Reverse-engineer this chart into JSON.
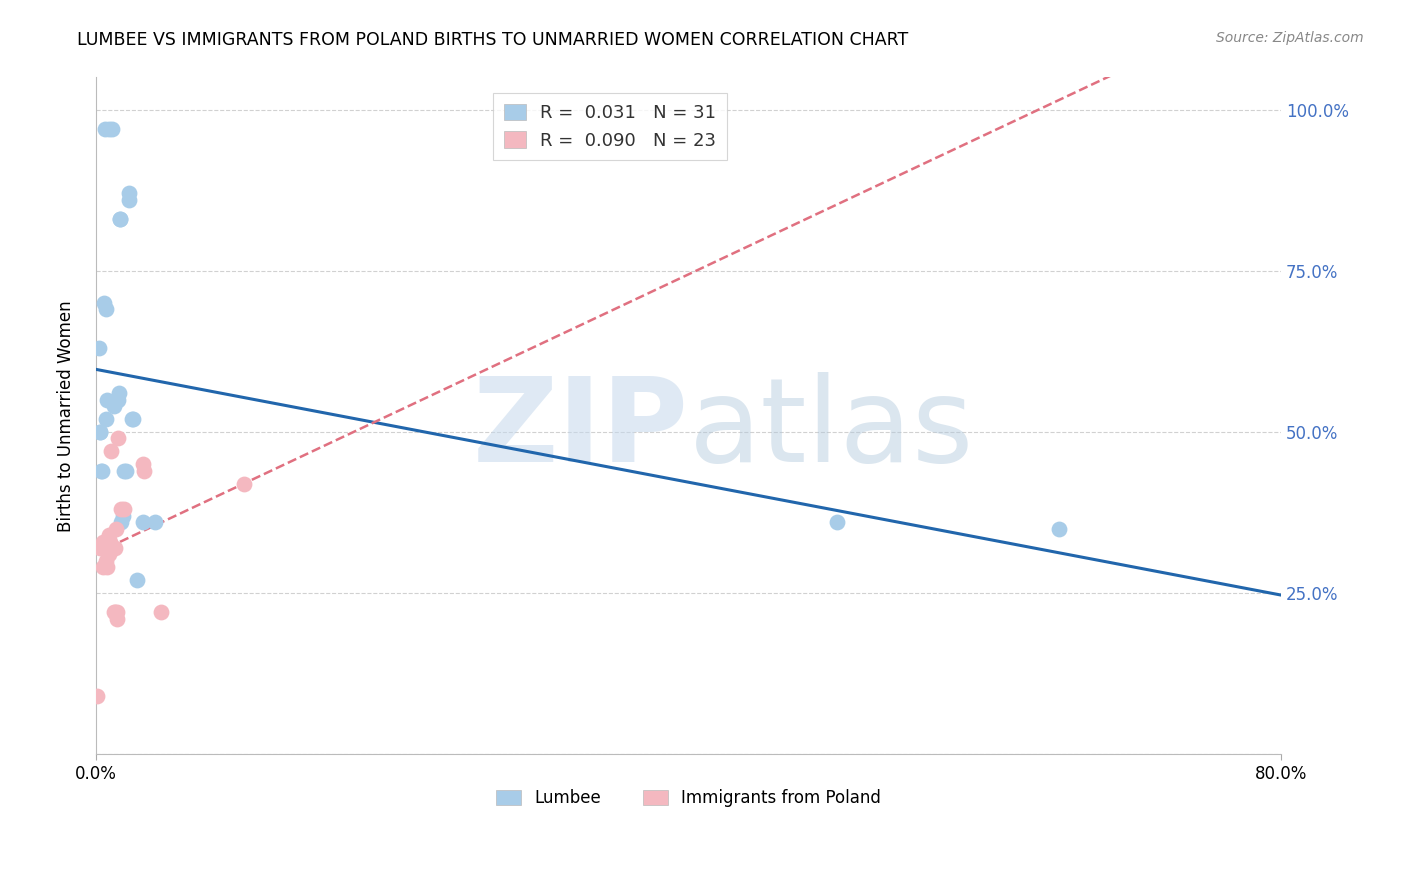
{
  "title": "LUMBEE VS IMMIGRANTS FROM POLAND BIRTHS TO UNMARRIED WOMEN CORRELATION CHART",
  "source": "Source: ZipAtlas.com",
  "ylabel": "Births to Unmarried Women",
  "xlabel_lumbee": "Lumbee",
  "xlabel_poland": "Immigrants from Poland",
  "xlim": [
    0.0,
    80.0
  ],
  "ylim": [
    0.0,
    105.0
  ],
  "ytick_vals": [
    0.0,
    25.0,
    50.0,
    75.0,
    100.0
  ],
  "ytick_labels": [
    "",
    "25.0%",
    "50.0%",
    "75.0%",
    "100.0%"
  ],
  "xtick_vals": [
    0.0,
    80.0
  ],
  "xtick_labels": [
    "0.0%",
    "80.0%"
  ],
  "lumbee_R": 0.031,
  "lumbee_N": 31,
  "poland_R": 0.09,
  "poland_N": 23,
  "lumbee_color": "#a8cce8",
  "poland_color": "#f4b8c0",
  "lumbee_line_color": "#2166ac",
  "poland_line_color": "#e07080",
  "lumbee_x": [
    0.6,
    0.9,
    1.1,
    0.2,
    0.25,
    0.3,
    0.35,
    0.4,
    0.55,
    0.65,
    0.7,
    0.75,
    1.2,
    1.4,
    1.5,
    1.55,
    1.6,
    1.65,
    1.7,
    1.8,
    1.9,
    2.0,
    2.2,
    2.25,
    2.4,
    2.5,
    2.8,
    3.2,
    4.0,
    50.0,
    65.0
  ],
  "lumbee_y": [
    97.0,
    97.0,
    97.0,
    63.0,
    50.0,
    50.0,
    44.0,
    44.0,
    70.0,
    69.0,
    52.0,
    55.0,
    54.0,
    55.0,
    55.0,
    56.0,
    83.0,
    83.0,
    36.0,
    37.0,
    44.0,
    44.0,
    87.0,
    86.0,
    52.0,
    52.0,
    27.0,
    36.0,
    36.0,
    36.0,
    35.0
  ],
  "poland_x": [
    0.3,
    0.5,
    0.5,
    0.7,
    0.75,
    0.8,
    0.85,
    0.9,
    0.95,
    1.0,
    1.2,
    1.25,
    1.3,
    1.35,
    1.4,
    1.45,
    1.5,
    1.7,
    1.9,
    3.2,
    3.25,
    4.4,
    10.0
  ],
  "poland_y": [
    32.0,
    33.0,
    29.0,
    30.0,
    29.0,
    32.0,
    31.0,
    34.0,
    33.0,
    47.0,
    22.0,
    22.0,
    32.0,
    35.0,
    22.0,
    21.0,
    49.0,
    38.0,
    38.0,
    45.0,
    44.0,
    22.0,
    42.0
  ],
  "poland_low_x": [
    0.1
  ],
  "poland_low_y": [
    9.0
  ]
}
